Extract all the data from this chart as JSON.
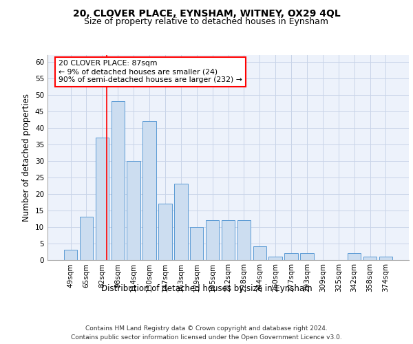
{
  "title": "20, CLOVER PLACE, EYNSHAM, WITNEY, OX29 4QL",
  "subtitle": "Size of property relative to detached houses in Eynsham",
  "xlabel": "Distribution of detached houses by size in Eynsham",
  "ylabel": "Number of detached properties",
  "categories": [
    "49sqm",
    "65sqm",
    "82sqm",
    "98sqm",
    "114sqm",
    "130sqm",
    "147sqm",
    "163sqm",
    "179sqm",
    "195sqm",
    "212sqm",
    "228sqm",
    "244sqm",
    "260sqm",
    "277sqm",
    "293sqm",
    "309sqm",
    "325sqm",
    "342sqm",
    "358sqm",
    "374sqm"
  ],
  "values": [
    3,
    13,
    37,
    48,
    30,
    42,
    17,
    23,
    10,
    12,
    12,
    12,
    4,
    1,
    2,
    2,
    0,
    0,
    2,
    1,
    1
  ],
  "bar_color": "#ccddf0",
  "bar_edge_color": "#5b9bd5",
  "ylim": [
    0,
    62
  ],
  "yticks": [
    0,
    5,
    10,
    15,
    20,
    25,
    30,
    35,
    40,
    45,
    50,
    55,
    60
  ],
  "red_line_x": 2.3,
  "annotation_text": "20 CLOVER PLACE: 87sqm\n← 9% of detached houses are smaller (24)\n90% of semi-detached houses are larger (232) →",
  "footer_line1": "Contains HM Land Registry data © Crown copyright and database right 2024.",
  "footer_line2": "Contains public sector information licensed under the Open Government Licence v3.0.",
  "bg_color": "#edf2fb",
  "grid_color": "#c8d4e8",
  "title_fontsize": 10,
  "subtitle_fontsize": 9,
  "axis_label_fontsize": 8.5,
  "tick_fontsize": 7.5,
  "footer_fontsize": 6.5
}
